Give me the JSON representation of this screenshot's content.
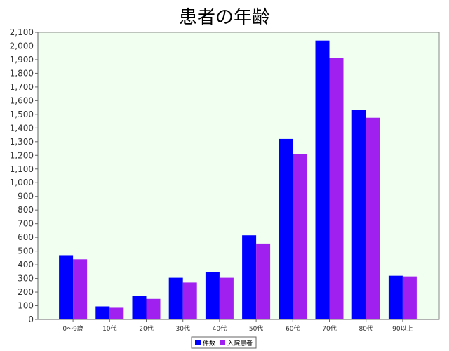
{
  "chart_data": {
    "type": "bar",
    "title": "患者の年齢",
    "categories": [
      "0〜9歳",
      "10代",
      "20代",
      "30代",
      "40代",
      "50代",
      "60代",
      "70代",
      "80代",
      "90以上"
    ],
    "series": [
      {
        "name": "件数",
        "color": "#0000ff",
        "values": [
          470,
          95,
          170,
          305,
          345,
          615,
          1320,
          2040,
          1535,
          320
        ]
      },
      {
        "name": "入院患者",
        "color": "#a020f0",
        "values": [
          440,
          85,
          150,
          270,
          305,
          555,
          1210,
          1915,
          1475,
          315
        ]
      }
    ],
    "ylim": [
      0,
      2100
    ],
    "ytick_step": 100,
    "xlabel": "",
    "ylabel": "",
    "grid": false,
    "legend_position": "bottom-center",
    "plot_background": "#f0fff0"
  }
}
